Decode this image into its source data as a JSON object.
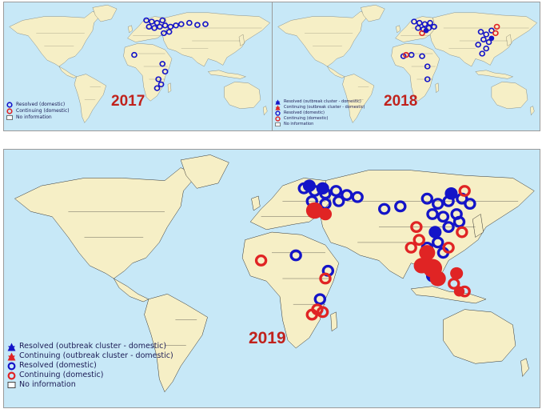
{
  "maps": [
    {
      "id": "map-2017",
      "year": "2017",
      "legend": [
        {
          "symbol": "resolved-domestic",
          "label": "Resolved (domestic)"
        },
        {
          "symbol": "continuing-domestic",
          "label": "Continuing (domestic)"
        },
        {
          "symbol": "no-information",
          "label": "No information"
        }
      ]
    },
    {
      "id": "map-2018",
      "year": "2018",
      "legend": [
        {
          "symbol": "resolved-cluster",
          "label": "Resolved (outbreak cluster - domestic)"
        },
        {
          "symbol": "continuing-cluster",
          "label": "Continuing (outbreak cluster - domestic)"
        },
        {
          "symbol": "resolved-domestic",
          "label": "Resolved (domestic)"
        },
        {
          "symbol": "continuing-domestic",
          "label": "Continuing (domestic)"
        },
        {
          "symbol": "no-information",
          "label": "No information"
        }
      ]
    },
    {
      "id": "map-2019",
      "year": "2019",
      "legend": [
        {
          "symbol": "resolved-cluster",
          "label": "Resolved (outbreak cluster - domestic)"
        },
        {
          "symbol": "continuing-cluster",
          "label": "Continuing (outbreak cluster - domestic)"
        },
        {
          "symbol": "resolved-domestic",
          "label": "Resolved (domestic)"
        },
        {
          "symbol": "continuing-domestic",
          "label": "Continuing (domestic)"
        },
        {
          "symbol": "no-information",
          "label": "No information"
        }
      ]
    }
  ],
  "colors": {
    "ocean": "#c7e8f7",
    "land": "#f6efc6",
    "resolved": "#1414c8",
    "continuing": "#e02424",
    "year_label": "#c0221c"
  }
}
